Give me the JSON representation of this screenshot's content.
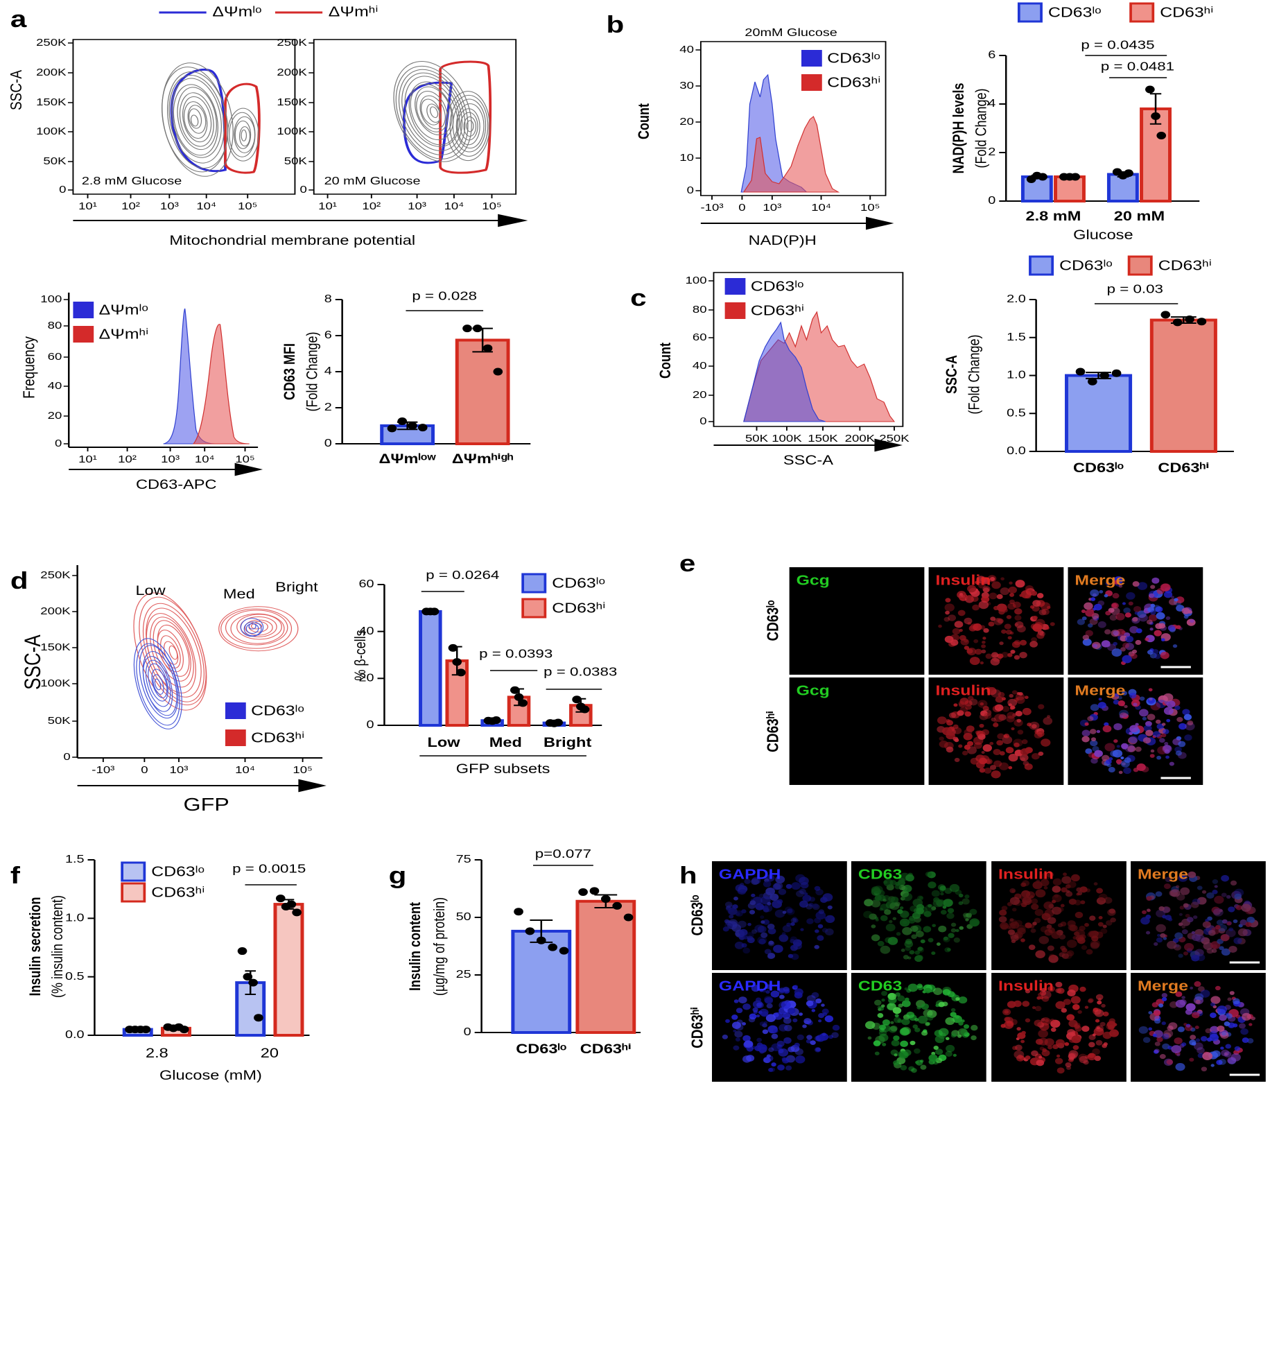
{
  "panel_letters": [
    "a",
    "b",
    "c",
    "d",
    "e",
    "f",
    "g",
    "h"
  ],
  "a_header": {
    "legend": [
      "ΔΨmˡᵒ",
      "ΔΨmʰⁱ"
    ],
    "xlabel": "Mitochondrial membrane potential"
  },
  "flow_plots": [
    {
      "ylabel": "SSC-A",
      "annotation": "2.8 mM Glucose",
      "yticks": [
        "250K",
        "200K",
        "150K",
        "100K",
        "50K",
        "0"
      ],
      "xticks": [
        "10¹",
        "10²",
        "10³",
        "10⁴",
        "10⁵"
      ]
    },
    {
      "annotation": "20 mM Glucose",
      "yticks": [
        "250K",
        "200K",
        "150K",
        "100K",
        "50K",
        "0"
      ],
      "xticks": [
        "10¹",
        "10²",
        "10³",
        "10⁴",
        "10⁵"
      ]
    },
    {
      "ylabel": "Frequency",
      "xlabel": "CD63-APC",
      "yticks": [
        "100",
        "80",
        "60",
        "40",
        "20",
        "0"
      ],
      "xticks": [
        "10¹",
        "10²",
        "10³",
        "10⁴",
        "10⁵"
      ],
      "legend": [
        "ΔΨmˡᵒ",
        "ΔΨmʰⁱ"
      ]
    },
    {
      "title": "20mM Glucose",
      "ylabel": "Count",
      "xlabel": "NAD(P)H",
      "yticks": [
        "40",
        "30",
        "20",
        "10",
        "0"
      ],
      "xticks": [
        "-10³",
        "0",
        "10³",
        "10⁴",
        "10⁵"
      ],
      "legend": [
        "CD63ˡᵒ",
        "CD63ʰⁱ"
      ]
    },
    {
      "ylabel": "Count",
      "xlabel": "SSC-A",
      "yticks": [
        "100",
        "80",
        "60",
        "40",
        "20",
        "0"
      ],
      "xticks": [
        "50K",
        "100K",
        "150K",
        "200K",
        "250K"
      ],
      "legend": [
        "CD63ˡᵒ",
        "CD63ʰⁱ"
      ]
    },
    {
      "ylabel": "SSC-A",
      "xlabel": "GFP",
      "annotations": [
        "Low",
        "Med",
        "Bright"
      ],
      "yticks": [
        "250K",
        "200K",
        "150K",
        "100K",
        "50K",
        "0"
      ],
      "xticks": [
        "-10³",
        "0",
        "10³",
        "10⁴",
        "10⁵"
      ],
      "legend": [
        "CD63ˡᵒ",
        "CD63ʰⁱ"
      ]
    }
  ],
  "chart_data": [
    {
      "type": "bar",
      "ylabel": [
        "CD63 MFI",
        "(Fold Change)"
      ],
      "categories": [
        "ΔΨmˡᵒʷ",
        "ΔΨmʰⁱᵍʰ"
      ],
      "values": [
        1.0,
        5.75
      ],
      "errors": [
        0.2,
        0.65
      ],
      "points": [
        [
          0.85,
          1.25,
          1.0,
          0.9
        ],
        [
          6.4,
          6.4,
          5.3,
          4.0
        ]
      ],
      "colors": [
        "#8c9ff0",
        "#e8877c"
      ],
      "edge_colors": [
        "#1f36d6",
        "#d42a1e"
      ],
      "ylim": [
        0,
        8
      ],
      "yticks": [
        0,
        2,
        4,
        6,
        8
      ],
      "annotations": [
        "p = 0.028"
      ]
    },
    {
      "type": "grouped_bar",
      "ylabel": [
        "NAD(P)H levels",
        "(Fold Change)"
      ],
      "xlabel": "Glucose",
      "categories": [
        "2.8 mM",
        "20 mM"
      ],
      "series": [
        {
          "name": "CD63ˡᵒ",
          "color": "#8c9ff0",
          "edge": "#1f36d6",
          "values": [
            1.0,
            1.1
          ],
          "errors": [
            0.06,
            0.1
          ],
          "points": [
            [
              0.9,
              1.05,
              1.0
            ],
            [
              1.2,
              1.05,
              1.15
            ]
          ]
        },
        {
          "name": "CD63ʰⁱ",
          "color": "#f0928a",
          "edge": "#d42a1e",
          "values": [
            1.0,
            3.8
          ],
          "errors": [
            0.02,
            0.62
          ],
          "points": [
            [
              1.0,
              1.0,
              1.0
            ],
            [
              4.6,
              3.5,
              2.7
            ]
          ]
        }
      ],
      "ylim": [
        0,
        6
      ],
      "yticks": [
        0,
        2,
        4,
        6
      ],
      "annotations": [
        "p = 0.0435",
        "p = 0.0481"
      ]
    },
    {
      "type": "bar",
      "ylabel": [
        "SSC-A",
        "(Fold Change)"
      ],
      "categories": [
        "CD63ˡᵒ",
        "CD63ʰⁱ"
      ],
      "legend": [
        "CD63ˡᵒ",
        "CD63ʰⁱ"
      ],
      "values": [
        1.0,
        1.73
      ],
      "errors": [
        0.04,
        0.04
      ],
      "points": [
        [
          1.05,
          0.92,
          1.0,
          1.03
        ],
        [
          1.8,
          1.7,
          1.74,
          1.71
        ]
      ],
      "colors": [
        "#8c9ff0",
        "#e8877c"
      ],
      "edge_colors": [
        "#1f36d6",
        "#d42a1e"
      ],
      "ylim": [
        0,
        2
      ],
      "yticks": [
        {
          "value": 0,
          "label": "0.0"
        },
        0.5,
        {
          "value": 1,
          "label": "1.0"
        },
        1.5,
        {
          "value": 2,
          "label": "2.0"
        }
      ],
      "annotations": [
        "p = 0.03"
      ]
    },
    {
      "type": "grouped_bar",
      "ylabel": [
        "% β-cells"
      ],
      "xlabel": "GFP subsets",
      "categories": [
        "Low",
        "Med",
        "Bright"
      ],
      "series": [
        {
          "name": "CD63ˡᵒ",
          "color": "#8c9ff0",
          "edge": "#1f36d6",
          "values": [
            48.5,
            2,
            1
          ],
          "errors": [
            0.3,
            0.3,
            0.2
          ],
          "points": [
            [
              48.5,
              48.5,
              48.5
            ],
            [
              2,
              1.8,
              2.2
            ],
            [
              1,
              0.8,
              1.2
            ]
          ]
        },
        {
          "name": "CD63ʰⁱ",
          "color": "#f0928a",
          "edge": "#d42a1e",
          "values": [
            27.5,
            12,
            8.5
          ],
          "errors": [
            6,
            3.5,
            2.8
          ],
          "points": [
            [
              33,
              27,
              22.5
            ],
            [
              15,
              12,
              9.5
            ],
            [
              11,
              8,
              6.8
            ]
          ]
        }
      ],
      "ylim": [
        0,
        60
      ],
      "yticks": [
        0,
        20,
        40,
        60
      ],
      "annotations": [
        "p = 0.0264",
        "p = 0.0393",
        "p = 0.0383"
      ]
    },
    {
      "type": "grouped_bar",
      "ylabel": [
        "Insulin secretion",
        "(% insulin content)"
      ],
      "xlabel": "Glucose (mM)",
      "categories": [
        "2.8",
        "20"
      ],
      "series": [
        {
          "name": "CD63ˡᵒ",
          "color": "#b8c3f2",
          "edge": "#1f36d6",
          "values": [
            0.05,
            0.45
          ],
          "errors": [
            0.01,
            0.1
          ],
          "points": [
            [
              0.05,
              0.05,
              0.05,
              0.05
            ],
            [
              0.72,
              0.5,
              0.45,
              0.15
            ]
          ]
        },
        {
          "name": "CD63ʰⁱ",
          "color": "#f6c6c0",
          "edge": "#d42a1e",
          "values": [
            0.06,
            1.12
          ],
          "errors": [
            0.01,
            0.04
          ],
          "points": [
            [
              0.07,
              0.06,
              0.07,
              0.05
            ],
            [
              1.17,
              1.1,
              1.12,
              1.05
            ]
          ]
        }
      ],
      "ylim": [
        0,
        1.5
      ],
      "yticks": [
        {
          "value": 0,
          "label": "0.0"
        },
        0.5,
        {
          "value": 1,
          "label": "1.0"
        },
        1.5
      ],
      "annotations": [
        "p = 0.0015"
      ]
    },
    {
      "type": "bar",
      "ylabel": [
        "Insulin content",
        "(µg/mg of protein)"
      ],
      "categories": [
        "CD63ˡᵒ",
        "CD63ʰⁱ"
      ],
      "values": [
        44,
        57
      ],
      "errors": [
        4.8,
        2.8
      ],
      "points": [
        [
          52.5,
          44,
          40,
          37,
          35.5
        ],
        [
          61,
          61.5,
          58,
          55,
          50
        ]
      ],
      "colors": [
        "#8c9ff0",
        "#e8877c"
      ],
      "edge_colors": [
        "#1f36d6",
        "#d42a1e"
      ],
      "ylim": [
        0,
        75
      ],
      "yticks": [
        0,
        25,
        50,
        75
      ],
      "annotations": [
        "p=0.077"
      ]
    }
  ],
  "image_panels": [
    {
      "column_labels": [
        "Gcg",
        "Insulin",
        "Merge"
      ],
      "row_labels": [
        "CD63ˡᵒ",
        "CD63ʰⁱ"
      ]
    },
    {
      "column_labels": [
        "GAPDH",
        "CD63",
        "Insulin",
        "Merge"
      ],
      "row_labels": [
        "CD63ˡᵒ",
        "CD63ʰⁱ"
      ]
    }
  ]
}
